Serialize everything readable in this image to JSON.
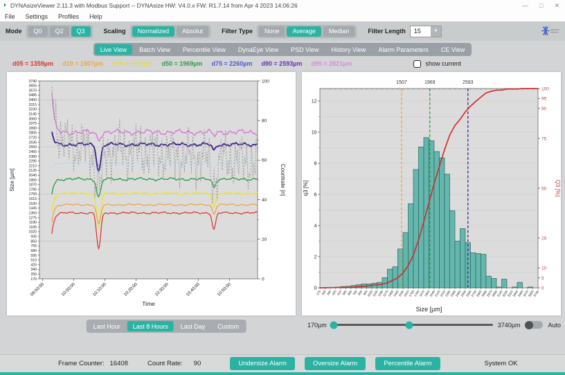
{
  "window": {
    "title": "DYNAsizeViewer 2.11.3 with Modbus Support  --  DYNAsize HW: V4.0.x   FW: R1.7.14  from Apr  4 2023 14:06:26",
    "app_icon_glyph": "◗",
    "minimize_glyph": "—",
    "maximize_glyph": "□",
    "close_glyph": "✕"
  },
  "menu": {
    "items": [
      "File",
      "Settings",
      "Profiles",
      "Help"
    ]
  },
  "toolbar": {
    "mode_label": "Mode",
    "mode_options": [
      {
        "label": "Q0",
        "active": false
      },
      {
        "label": "Q2",
        "active": false
      },
      {
        "label": "Q3",
        "active": true
      }
    ],
    "scaling_label": "Scaling",
    "scaling_options": [
      {
        "label": "Normalized",
        "active": true
      },
      {
        "label": "Absolut",
        "active": false
      }
    ],
    "filter_type_label": "Filter Type",
    "filter_type_options": [
      {
        "label": "None",
        "active": false
      },
      {
        "label": "Average",
        "active": true
      },
      {
        "label": "Median",
        "active": false
      }
    ],
    "filter_length_label": "Filter Length",
    "filter_length_value": "15",
    "dropdown_arrow_glyph": "▼"
  },
  "tabs": [
    {
      "label": "Live View",
      "active": true
    },
    {
      "label": "Batch View",
      "active": false
    },
    {
      "label": "Percentile View",
      "active": false
    },
    {
      "label": "DynaEye View",
      "active": false
    },
    {
      "label": "PSD View",
      "active": false
    },
    {
      "label": "History View",
      "active": false
    },
    {
      "label": "Alarm Parameters",
      "active": false
    },
    {
      "label": "CE View",
      "active": false
    }
  ],
  "percentiles": [
    {
      "text": "d05 = 1359µm",
      "color": "#d33a31"
    },
    {
      "text": "d10 = 1507µm",
      "color": "#efa93e"
    },
    {
      "text": "d25 = 1711µm",
      "color": "#e5dd3e"
    },
    {
      "text": "d50 = 1969µm",
      "color": "#2f9e44"
    },
    {
      "text": "d75 = 2260µm",
      "color": "#4d5bd6"
    },
    {
      "text": "d90 = 2593µm",
      "color": "#6733b3"
    },
    {
      "text": "d95 = 2821µm",
      "color": "#e287e0"
    }
  ],
  "show_current_label": "show current",
  "time_buttons": [
    {
      "label": "Last Hour",
      "active": false
    },
    {
      "label": "Last 8 Hours",
      "active": true
    },
    {
      "label": "Last Day",
      "active": false
    },
    {
      "label": "Custom",
      "active": false
    }
  ],
  "slider": {
    "min_label": "170µm",
    "max_label": "3740µm",
    "auto_label": "Auto"
  },
  "status_bar": {
    "frame_counter_label": "Frame Counter:",
    "frame_counter_value": "16408",
    "count_rate_label": "Count Rate:",
    "count_rate_value": "90",
    "alarm_buttons": [
      "Undersize Alarm",
      "Oversize Alarm",
      "Percentile Alarm"
    ],
    "system_status": "System OK"
  },
  "colors": {
    "accent": "#2ab3a3",
    "plot_bg": "#dcdcdc"
  },
  "chart_data": [
    {
      "type": "line",
      "title": "",
      "xlabel": "Time",
      "ylabel": "Size [µm]",
      "y2label": "Countrate [n]",
      "ylim": [
        170,
        3740
      ],
      "y_tick_step": 85,
      "y2lim": [
        0,
        100
      ],
      "y2_ticks": [
        0,
        20,
        40,
        60,
        80,
        100
      ],
      "x_ticks": [
        "09:50:00",
        "10:00:00",
        "10:10:00",
        "10:20:00",
        "10:30:00",
        "10:40:00",
        "10:50:00"
      ],
      "grid_y_values": [
        850,
        1700,
        2550,
        3400
      ],
      "events": {
        "dip1_time": "10:08",
        "dip2_time": "10:45",
        "start_transient_time": "09:53"
      },
      "series": [
        {
          "name": "d05",
          "color": "#dd2c2c",
          "base": 1359,
          "amp": 22,
          "dip1": -650,
          "dip2": -300,
          "spike": -380,
          "width": 1.2
        },
        {
          "name": "d10",
          "color": "#f0a23a",
          "base": 1507,
          "amp": 20,
          "dip1": -350,
          "dip2": -160,
          "spike": -300,
          "width": 1.2
        },
        {
          "name": "d25",
          "color": "#ece43f",
          "base": 1711,
          "amp": 22,
          "dip1": -600,
          "dip2": -240,
          "spike": -340,
          "width": 1.7
        },
        {
          "name": "d50",
          "color": "#2f9e44",
          "base": 1969,
          "amp": 30,
          "dip1": -330,
          "dip2": -140,
          "spike": -260,
          "width": 1.4
        },
        {
          "name": "d75",
          "color": "#b9d9ec",
          "base": 2260,
          "amp": 15,
          "dip1": -180,
          "dip2": -80,
          "spike": -120,
          "width": 1.1
        },
        {
          "name": "d90",
          "color": "#41258b",
          "base": 2593,
          "amp": 38,
          "dip1": -480,
          "dip2": -110,
          "spike": 220,
          "width": 1.9
        },
        {
          "name": "d95",
          "color": "#d96fd6",
          "base": 2815,
          "amp": 55,
          "dip1": -130,
          "dip2": -60,
          "spike": 720,
          "width": 1.3
        },
        {
          "name": "countrate",
          "color": "#9b9b9b",
          "base": 68,
          "amp": 13,
          "dip1": -18,
          "dip2": -12,
          "spike": 30,
          "width": 0.9,
          "axis": "right",
          "dashed": true
        }
      ]
    },
    {
      "type": "bar",
      "title": "",
      "xlabel": "Size [µm]",
      "ylabel": "q3 [%]",
      "y2label": "Q3 [%]",
      "ylim": [
        0,
        12.8
      ],
      "y_ticks": [
        0,
        2,
        4,
        6,
        8,
        10,
        12
      ],
      "y2lim": [
        0,
        100
      ],
      "y2_ticks": [
        0,
        5,
        10,
        25,
        50,
        75,
        90,
        95,
        100
      ],
      "bin_start": 170,
      "bin_width": 85,
      "q3_values": [
        0.02,
        0.03,
        0.03,
        0.05,
        0.08,
        0.1,
        0.15,
        0.2,
        0.25,
        0.25,
        0.3,
        0.35,
        0.65,
        1.2,
        1.35,
        2.5,
        3.55,
        5.4,
        7.6,
        9.05,
        9.65,
        9.45,
        8.75,
        8.35,
        7.3,
        4.95,
        3.0,
        3.8,
        2.9,
        2.25,
        2.2,
        2.15,
        0.75,
        0.6,
        0.05,
        0.55,
        0.0,
        0.05,
        0.35,
        0.0,
        0.05,
        0.0
      ],
      "Q3_cumulative": [
        0.0,
        0.1,
        0.1,
        0.2,
        0.2,
        0.3,
        0.5,
        0.7,
        0.9,
        1.2,
        1.5,
        1.8,
        2.5,
        3.7,
        5.0,
        7.5,
        11.1,
        16.5,
        24.0,
        33.1,
        42.7,
        52.2,
        60.9,
        69.3,
        76.6,
        81.5,
        84.5,
        88.3,
        91.2,
        93.5,
        95.7,
        97.8,
        98.6,
        99.2,
        99.2,
        99.8,
        99.8,
        99.8,
        100.0,
        100.0,
        100.0,
        100.0
      ],
      "markers": [
        {
          "label": "1507",
          "value": 1507,
          "color": "#f0a23a"
        },
        {
          "label": "1969",
          "value": 1969,
          "color": "#2f9e44"
        },
        {
          "label": "2593",
          "value": 2593,
          "color": "#41258b"
        }
      ],
      "bar_color": "#65b7ae",
      "bar_edge_color": "#27645e",
      "curve_color": "#d22f2f"
    }
  ]
}
